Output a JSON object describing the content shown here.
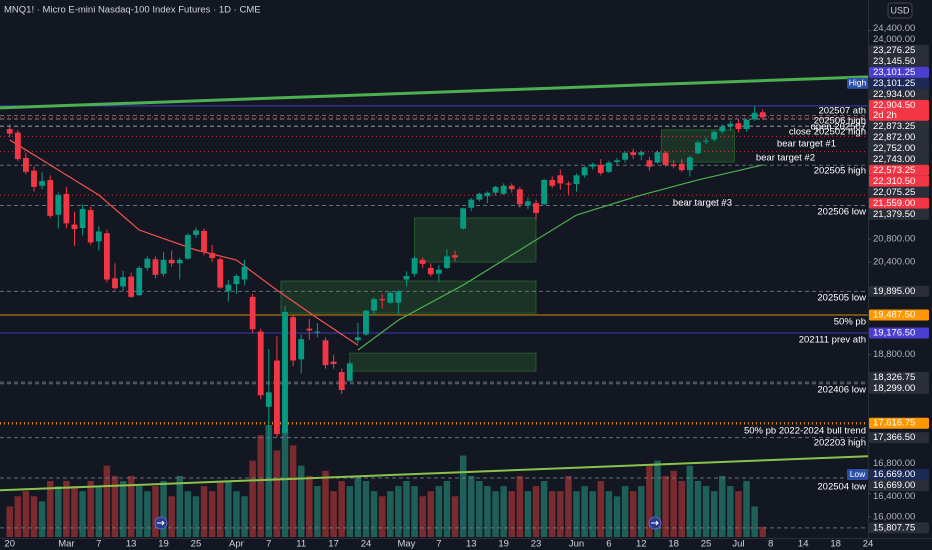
{
  "chart_data": {
    "type": "candlestick",
    "title": "MNQ1! · Micro E-mini Nasdaq-100 Index Futures · 1D · CME",
    "currency": "USD",
    "up_color": "#089981",
    "down_color": "#f23645",
    "volume_up_color": "#1e5f58",
    "volume_down_color": "#7a2b2f",
    "xlim": [
      -1.2,
      106
    ],
    "ylim": [
      15650,
      24550
    ],
    "xticks": [
      {
        "value": 0,
        "label": "20"
      },
      {
        "value": 7,
        "label": "Mar"
      },
      {
        "value": 11,
        "label": "7"
      },
      {
        "value": 15,
        "label": "13"
      },
      {
        "value": 19,
        "label": "19"
      },
      {
        "value": 23,
        "label": "25"
      },
      {
        "value": 28,
        "label": "Apr"
      },
      {
        "value": 32,
        "label": "7"
      },
      {
        "value": 36,
        "label": "11"
      },
      {
        "value": 40,
        "label": "17"
      },
      {
        "value": 44,
        "label": "24"
      },
      {
        "value": 49,
        "label": "May"
      },
      {
        "value": 53,
        "label": "7"
      },
      {
        "value": 57,
        "label": "13"
      },
      {
        "value": 61,
        "label": "19"
      },
      {
        "value": 65,
        "label": "23"
      },
      {
        "value": 70,
        "label": "Jun"
      },
      {
        "value": 74,
        "label": "6"
      },
      {
        "value": 78,
        "label": "12"
      },
      {
        "value": 82,
        "label": "18"
      },
      {
        "value": 86,
        "label": "25"
      },
      {
        "value": 90,
        "label": "Jul"
      },
      {
        "value": 94,
        "label": "8"
      },
      {
        "value": 98,
        "label": "14"
      },
      {
        "value": 102,
        "label": "18"
      },
      {
        "value": 106,
        "label": "24"
      }
    ],
    "yticks": [
      {
        "value": 24400,
        "label": "24,400.00"
      },
      {
        "value": 24000,
        "label": "24,000.00"
      },
      {
        "value": 20800,
        "label": "20,800.00"
      },
      {
        "value": 20400,
        "label": "20,400.00"
      },
      {
        "value": 18800,
        "label": "18,800.00"
      },
      {
        "value": 16800,
        "label": "16,800.00"
      },
      {
        "value": 16400,
        "label": "16,400.00"
      },
      {
        "value": 16000,
        "label": "16,000.00"
      }
    ],
    "ohlc": [
      [
        22700,
        22780,
        22560,
        22620
      ],
      [
        22640,
        22680,
        22150,
        22180
      ],
      [
        22200,
        22290,
        21920,
        21960
      ],
      [
        21980,
        22060,
        21620,
        21700
      ],
      [
        21720,
        21950,
        21660,
        21800
      ],
      [
        21820,
        21900,
        21160,
        21200
      ],
      [
        21220,
        21600,
        20980,
        21560
      ],
      [
        21580,
        21700,
        20980,
        21070
      ],
      [
        21050,
        21270,
        20680,
        20970
      ],
      [
        20990,
        21400,
        20860,
        21320
      ],
      [
        21300,
        21360,
        20700,
        20740
      ],
      [
        20760,
        21020,
        20600,
        20930
      ],
      [
        20900,
        20960,
        20050,
        20100
      ],
      [
        20120,
        20380,
        19920,
        19950
      ],
      [
        19980,
        20250,
        19900,
        20140
      ],
      [
        20150,
        20220,
        19780,
        19800
      ],
      [
        19830,
        20330,
        19810,
        20300
      ],
      [
        20300,
        20500,
        20250,
        20460
      ],
      [
        20450,
        20500,
        20120,
        20180
      ],
      [
        20200,
        20580,
        20150,
        20440
      ],
      [
        20440,
        20600,
        20320,
        20380
      ],
      [
        20380,
        20480,
        20100,
        20440
      ],
      [
        20460,
        20900,
        20440,
        20870
      ],
      [
        20870,
        21000,
        20820,
        20950
      ],
      [
        20940,
        20980,
        20520,
        20580
      ],
      [
        20560,
        20700,
        20400,
        20470
      ],
      [
        20450,
        20480,
        19940,
        19960
      ],
      [
        19900,
        20090,
        19720,
        20010
      ],
      [
        20020,
        20190,
        19850,
        20160
      ],
      [
        20100,
        20440,
        20000,
        20320
      ],
      [
        19800,
        19850,
        19180,
        19240
      ],
      [
        19200,
        19250,
        18030,
        18100
      ],
      [
        17900,
        18900,
        16669,
        18150
      ],
      [
        18700,
        19120,
        17380,
        17430
      ],
      [
        17450,
        19640,
        17410,
        19540
      ],
      [
        19450,
        19480,
        18600,
        18700
      ],
      [
        18720,
        19150,
        18480,
        19070
      ],
      [
        19250,
        19420,
        19060,
        19220
      ],
      [
        19200,
        19350,
        19100,
        19200
      ],
      [
        19050,
        19100,
        18560,
        18620
      ],
      [
        18680,
        18800,
        18560,
        18640
      ],
      [
        18500,
        18560,
        18120,
        18190
      ],
      [
        18350,
        18690,
        18330,
        18650
      ],
      [
        19050,
        19350,
        19000,
        19100
      ],
      [
        19150,
        19580,
        19130,
        19560
      ],
      [
        19560,
        19790,
        19480,
        19760
      ],
      [
        19760,
        19850,
        19600,
        19740
      ],
      [
        19700,
        19900,
        19680,
        19870
      ],
      [
        19700,
        19920,
        19500,
        19890
      ],
      [
        20100,
        20240,
        19980,
        20160
      ],
      [
        20200,
        20500,
        20150,
        20470
      ],
      [
        20440,
        20480,
        20300,
        20370
      ],
      [
        20300,
        20380,
        20150,
        20190
      ],
      [
        20200,
        20350,
        20050,
        20270
      ],
      [
        20300,
        20620,
        20280,
        20500
      ],
      [
        20520,
        20600,
        20420,
        20480
      ],
      [
        20980,
        21340,
        20960,
        21330
      ],
      [
        21340,
        21510,
        21280,
        21480
      ],
      [
        21480,
        21600,
        21450,
        21580
      ],
      [
        21540,
        21620,
        21420,
        21600
      ],
      [
        21600,
        21720,
        21550,
        21700
      ],
      [
        21580,
        21760,
        21560,
        21720
      ],
      [
        21720,
        21760,
        21600,
        21660
      ],
      [
        21660,
        21700,
        21340,
        21400
      ],
      [
        21380,
        21520,
        21320,
        21450
      ],
      [
        21420,
        21480,
        21140,
        21250
      ],
      [
        21400,
        21840,
        21390,
        21820
      ],
      [
        21820,
        21880,
        21680,
        21720
      ],
      [
        21900,
        22000,
        21650,
        21760
      ],
      [
        21760,
        21800,
        21560,
        21740
      ],
      [
        21750,
        21930,
        21620,
        21900
      ],
      [
        21900,
        22060,
        21860,
        22040
      ],
      [
        22050,
        22120,
        22000,
        22090
      ],
      [
        22080,
        22180,
        21900,
        21940
      ],
      [
        21960,
        22150,
        21940,
        22120
      ],
      [
        22130,
        22200,
        22080,
        22160
      ],
      [
        22170,
        22320,
        22120,
        22290
      ],
      [
        22300,
        22360,
        22180,
        22250
      ],
      [
        22250,
        22330,
        22160,
        22300
      ],
      [
        22160,
        22220,
        21980,
        22050
      ],
      [
        22120,
        22330,
        22100,
        22300
      ],
      [
        22290,
        22320,
        22050,
        22080
      ],
      [
        22090,
        22160,
        22020,
        22060
      ],
      [
        22100,
        22180,
        21960,
        21990
      ],
      [
        21990,
        22240,
        21880,
        22210
      ],
      [
        22280,
        22500,
        22260,
        22470
      ],
      [
        22490,
        22560,
        22440,
        22500
      ],
      [
        22520,
        22680,
        22480,
        22650
      ],
      [
        22660,
        22780,
        22620,
        22740
      ],
      [
        22750,
        22840,
        22680,
        22790
      ],
      [
        22800,
        22860,
        22640,
        22700
      ],
      [
        22700,
        22880,
        22660,
        22860
      ],
      [
        22870,
        23101.25,
        22840,
        22980
      ],
      [
        22990,
        23040,
        22860,
        22904.5
      ]
    ],
    "volume": [
      300000,
      400000,
      450000,
      400000,
      350000,
      550000,
      500000,
      550000,
      500000,
      450000,
      550000,
      500000,
      700000,
      600000,
      550000,
      600000,
      500000,
      450000,
      500000,
      550000,
      400000,
      600000,
      450000,
      400000,
      500000,
      450000,
      550000,
      550000,
      450000,
      400000,
      750000,
      1000000,
      1100000,
      850000,
      1050000,
      900000,
      700000,
      600000,
      500000,
      650000,
      450000,
      550000,
      500000,
      600000,
      550000,
      450000,
      400000,
      450000,
      500000,
      550000,
      500000,
      400000,
      450000,
      500000,
      550000,
      400000,
      800000,
      600000,
      550000,
      500000,
      450000,
      500000,
      450000,
      600000,
      450000,
      500000,
      550000,
      450000,
      450000,
      600000,
      450000,
      500000,
      450000,
      550000,
      450000,
      400000,
      500000,
      450000,
      500000,
      700000,
      750000,
      600000,
      650000,
      550000,
      700000,
      550000,
      500000,
      450000,
      600000,
      500000,
      450000,
      550000,
      300000,
      100000
    ],
    "lines": [
      {
        "color": "#ef5350",
        "width": 1.2,
        "x": [
          0,
          6,
          11,
          16,
          23,
          28,
          33,
          38,
          43
        ],
        "values": [
          22512,
          21993,
          21560,
          20955,
          20610,
          20436,
          19917,
          19433,
          18966
        ]
      },
      {
        "color": "#4caf50",
        "width": 1.2,
        "x": [
          43,
          48,
          56,
          63,
          70,
          78,
          85,
          93
        ],
        "values": [
          18880,
          19398,
          20004,
          20610,
          21214,
          21560,
          21820,
          22080
        ]
      },
      {
        "color": "#4caf50",
        "width": 3,
        "x": [
          -1.2,
          106
        ],
        "values": [
          23066,
          23602
        ]
      },
      {
        "color": "#8bc34a",
        "width": 2,
        "x": [
          -1.2,
          106
        ],
        "values": [
          16457,
          17045
        ]
      }
    ],
    "zones": [
      {
        "x": [
          50,
          65
        ],
        "values": [
          21163,
          20402
        ]
      },
      {
        "x": [
          33.5,
          65
        ],
        "values": [
          20073,
          19519
        ]
      },
      {
        "x": [
          42,
          65
        ],
        "values": [
          18827,
          18516
        ]
      },
      {
        "x": [
          80.5,
          89.5
        ],
        "values": [
          22685,
          22131
        ]
      }
    ],
    "zone_color": "#2e7d32",
    "price_labels": [
      {
        "value": 23276.25,
        "label": "23,276.25",
        "color": "#2a2e39"
      },
      {
        "value": 23145.5,
        "label": "23,145.50",
        "color": "#2a2e39"
      },
      {
        "value": 23101.25,
        "label": "23,101.25",
        "color": "#4b3fd1",
        "line": "solid"
      },
      {
        "value": 23101.25,
        "label": "23,101.25",
        "color": "#1c2a56",
        "tag": "High"
      },
      {
        "value": 22934,
        "label": "22,934.00",
        "color": "#2a2e39",
        "line": "dashed"
      },
      {
        "value": 22904.5,
        "label": "22,904.50",
        "color": "#f23645",
        "line": "dotted",
        "countdown": "2d 2h"
      },
      {
        "value": 22873.25,
        "label": "22,873.25",
        "color": "#2a2e39",
        "line": "dashed"
      },
      {
        "value": 22872,
        "label": "22,872.00",
        "color": "#2a2e39",
        "line": "dashed"
      },
      {
        "value": 22752,
        "label": "22,752.00",
        "color": "#2a2e39",
        "line": "dashed"
      },
      {
        "value": 22743,
        "label": "22,743.00",
        "color": "#2a2e39",
        "line": "dashed"
      },
      {
        "value": 22573.25,
        "label": "22,573.25",
        "color": "#f23645",
        "line": "dotted"
      },
      {
        "value": 22310.5,
        "label": "22,310.50",
        "color": "#f23645",
        "line": "dotted"
      },
      {
        "value": 22075.25,
        "label": "22,075.25",
        "color": "#2a2e39",
        "line": "dashed"
      },
      {
        "value": 21559,
        "label": "21,559.00",
        "color": "#f23645",
        "line": "dotted"
      },
      {
        "value": 21379.5,
        "label": "21,379.50",
        "color": "#2a2e39",
        "line": "dashed"
      },
      {
        "value": 19895,
        "label": "19,895.00",
        "color": "#2a2e39",
        "line": "dashed"
      },
      {
        "value": 19487.5,
        "label": "19,487.50",
        "color": "#ff9800",
        "line": "solid"
      },
      {
        "value": 19176.5,
        "label": "19,176.50",
        "color": "#4b3fd1",
        "line": "solid"
      },
      {
        "value": 18326.75,
        "label": "18,326.75",
        "color": "#2a2e39",
        "line": "dashed"
      },
      {
        "value": 18299,
        "label": "18,299.00",
        "color": "#2a2e39",
        "line": "dashed"
      },
      {
        "value": 17616.75,
        "label": "17,616.75",
        "color": "#ff9800",
        "line": "dotted"
      },
      {
        "value": 17366.5,
        "label": "17,366.50",
        "color": "#2a2e39",
        "line": "dashed"
      },
      {
        "value": 16669,
        "label": "16,669.00",
        "color": "#1c2a56",
        "tag": "Low"
      },
      {
        "value": 16669,
        "label": "16,669.00",
        "color": "#2a2e39",
        "line": "dashed"
      },
      {
        "value": 15807.75,
        "label": "15,807.75",
        "color": "#2a2e39",
        "line": "dashed"
      }
    ],
    "annotations": [
      "202507 ath",
      "202506 high",
      "open 202507",
      "close 202502 high",
      "bear target #1",
      "bear target #2",
      "202505 high",
      "bear target #3",
      "202506 low",
      "202505 low",
      "50% pb",
      "202111 prev ath",
      "202406 low",
      "50% pb 2022-2024 bull trend",
      "202203 high",
      "202504 low"
    ]
  }
}
